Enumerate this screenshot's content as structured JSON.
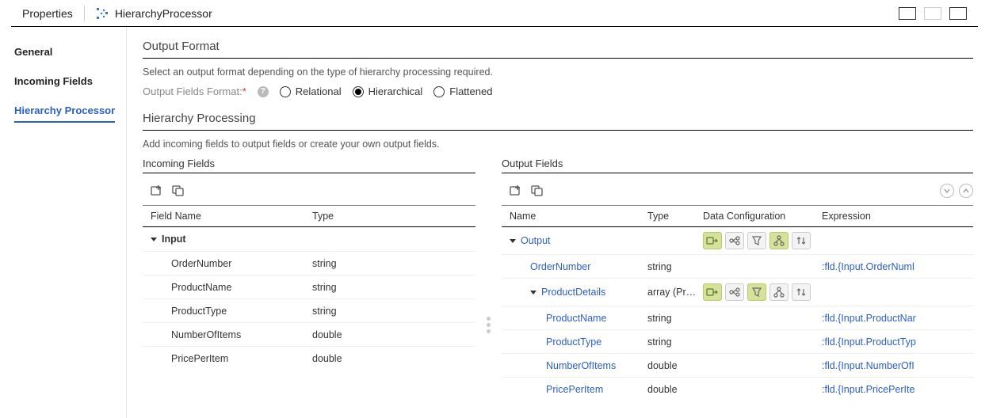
{
  "header": {
    "title": "Properties",
    "processor_name": "HierarchyProcessor"
  },
  "sidebar": {
    "items": [
      {
        "label": "General",
        "active": false
      },
      {
        "label": "Incoming Fields",
        "active": false
      },
      {
        "label": "Hierarchy Processor",
        "active": true
      }
    ]
  },
  "output_format": {
    "title": "Output Format",
    "description": "Select an output format depending on the type of hierarchy processing required.",
    "field_label": "Output Fields Format:",
    "options": [
      {
        "label": "Relational",
        "selected": false
      },
      {
        "label": "Hierarchical",
        "selected": true
      },
      {
        "label": "Flattened",
        "selected": false
      }
    ]
  },
  "hierarchy_processing": {
    "title": "Hierarchy Processing",
    "description": "Add incoming fields to output fields or create your own output fields."
  },
  "incoming": {
    "label": "Incoming Fields",
    "columns": {
      "name": "Field Name",
      "type": "Type"
    },
    "root": "Input",
    "fields": [
      {
        "name": "OrderNumber",
        "type": "string"
      },
      {
        "name": "ProductName",
        "type": "string"
      },
      {
        "name": "ProductType",
        "type": "string"
      },
      {
        "name": "NumberOfItems",
        "type": "double"
      },
      {
        "name": "PricePerItem",
        "type": "double"
      }
    ]
  },
  "output": {
    "label": "Output Fields",
    "columns": {
      "name": "Name",
      "type": "Type",
      "dc": "Data Configuration",
      "expr": "Expression"
    },
    "rows": [
      {
        "level": 0,
        "name": "Output",
        "type": "",
        "expr": "",
        "dc": true,
        "hl": [
          true,
          false,
          false,
          true,
          false
        ],
        "caret": true
      },
      {
        "level": 1,
        "name": "OrderNumber",
        "type": "string",
        "expr": ":fld.{Input.OrderNuml",
        "dc": false
      },
      {
        "level": 1,
        "name": "ProductDetails",
        "type": "array (Pr…",
        "expr": "",
        "dc": true,
        "hl": [
          true,
          false,
          true,
          false,
          false
        ],
        "caret": true
      },
      {
        "level": 2,
        "name": "ProductName",
        "type": "string",
        "expr": ":fld.{Input.ProductNar",
        "dc": false
      },
      {
        "level": 2,
        "name": "ProductType",
        "type": "string",
        "expr": ":fld.{Input.ProductTyp",
        "dc": false
      },
      {
        "level": 2,
        "name": "NumberOfItems",
        "type": "double",
        "expr": ":fld.{Input.NumberOfI",
        "dc": false
      },
      {
        "level": 2,
        "name": "PricePerItem",
        "type": "double",
        "expr": ":fld.{Input.PricePerIte",
        "dc": false
      }
    ]
  },
  "colors": {
    "link": "#2b5ec9",
    "highlight": "#d6e29a"
  }
}
